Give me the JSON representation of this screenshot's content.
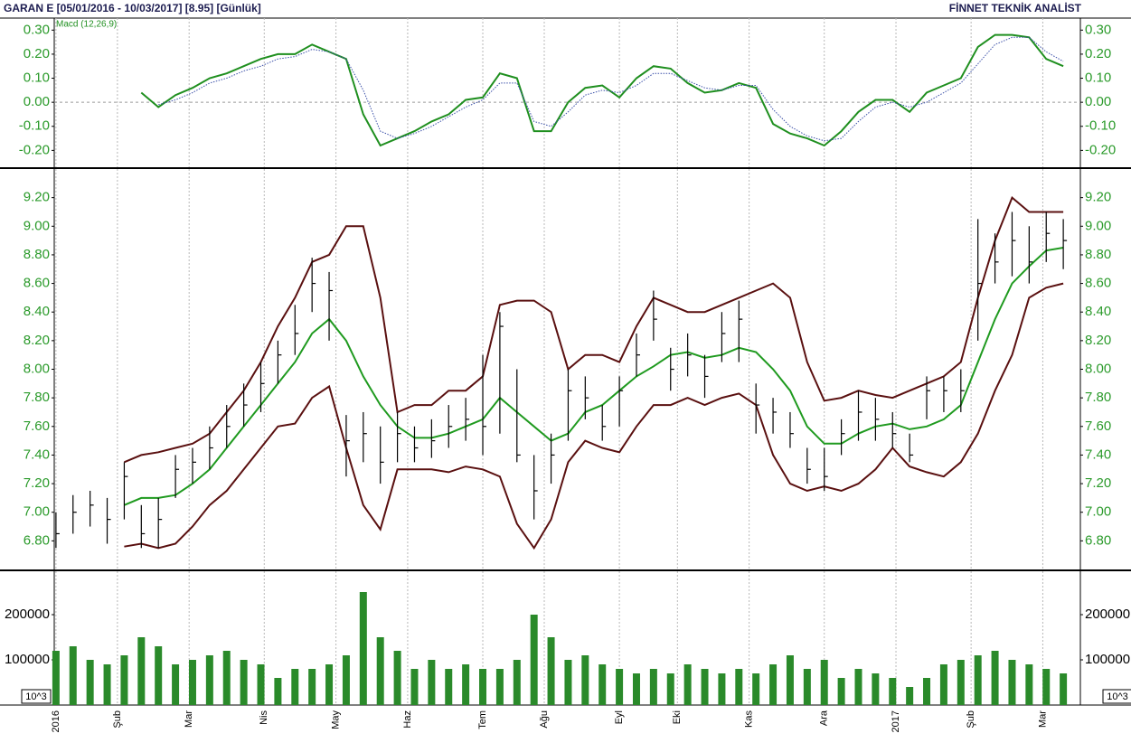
{
  "header": {
    "title": "GARAN E  [05/01/2016 - 10/03/2017]  [8.95]  [Günlük]",
    "brand": "FİNNET TEKNİK ANALİST"
  },
  "chart_data": [
    {
      "type": "line",
      "legend": "Macd (12,26,9)",
      "ref_line": 0,
      "xlim": [
        -0.5,
        300
      ],
      "ylim": [
        -0.27,
        0.35
      ],
      "yticks": [
        {
          "value": 0.3,
          "label": "0.30"
        },
        {
          "value": 0.2,
          "label": "0.20"
        },
        {
          "value": 0.1,
          "label": "0.10"
        },
        {
          "value": 0,
          "label": "0.00"
        },
        {
          "value": -0.1,
          "label": "-0.10"
        },
        {
          "value": -0.2,
          "label": "-0.20"
        }
      ],
      "x": [
        0,
        5,
        10,
        15,
        20,
        25,
        30,
        35,
        40,
        45,
        50,
        55,
        60,
        65,
        70,
        75,
        80,
        85,
        90,
        95,
        100,
        105,
        110,
        115,
        120,
        125,
        130,
        135,
        140,
        145,
        150,
        155,
        160,
        165,
        170,
        175,
        180,
        185,
        190,
        195,
        200,
        205,
        210,
        215,
        220,
        225,
        230,
        235,
        240,
        245,
        250,
        255,
        260,
        265,
        270,
        275,
        280,
        285,
        290,
        295
      ],
      "series": [
        {
          "color": "#1f8f1f",
          "style": "solid",
          "values": [
            null,
            null,
            null,
            null,
            null,
            0.04,
            -0.02,
            0.03,
            0.06,
            0.1,
            0.12,
            0.15,
            0.18,
            0.2,
            0.2,
            0.24,
            0.21,
            0.18,
            -0.05,
            -0.18,
            -0.15,
            -0.12,
            -0.08,
            -0.05,
            0.01,
            0.02,
            0.12,
            0.1,
            -0.12,
            -0.12,
            0.0,
            0.06,
            0.07,
            0.02,
            0.1,
            0.15,
            0.14,
            0.08,
            0.04,
            0.05,
            0.08,
            0.06,
            -0.09,
            -0.13,
            -0.15,
            -0.18,
            -0.12,
            -0.04,
            0.01,
            0.01,
            -0.04,
            0.04,
            0.07,
            0.1,
            0.23,
            0.28,
            0.28,
            0.27,
            0.18,
            0.15
          ]
        },
        {
          "color": "#3a4fa8",
          "style": "dotted",
          "values": [
            null,
            null,
            null,
            null,
            null,
            null,
            -0.01,
            0.01,
            0.04,
            0.08,
            0.1,
            0.13,
            0.15,
            0.18,
            0.19,
            0.22,
            0.21,
            0.18,
            0.05,
            -0.12,
            -0.15,
            -0.13,
            -0.1,
            -0.06,
            -0.02,
            0.01,
            0.08,
            0.08,
            -0.08,
            -0.1,
            -0.04,
            0.03,
            0.05,
            0.04,
            0.07,
            0.12,
            0.12,
            0.09,
            0.06,
            0.05,
            0.07,
            0.07,
            -0.03,
            -0.1,
            -0.14,
            -0.16,
            -0.15,
            -0.08,
            -0.02,
            0.0,
            -0.02,
            0.0,
            0.04,
            0.08,
            0.16,
            0.24,
            0.27,
            0.27,
            0.21,
            0.17
          ]
        }
      ]
    },
    {
      "type": "ohlc",
      "color": "#000000",
      "xlim": [
        -0.5,
        300
      ],
      "ylim": [
        6.6,
        9.4
      ],
      "yticks": [
        {
          "value": 9.2,
          "label": "9.20"
        },
        {
          "value": 9.0,
          "label": "9.00"
        },
        {
          "value": 8.8,
          "label": "8.80"
        },
        {
          "value": 8.6,
          "label": "8.60"
        },
        {
          "value": 8.4,
          "label": "8.40"
        },
        {
          "value": 8.2,
          "label": "8.20"
        },
        {
          "value": 8.0,
          "label": "8.00"
        },
        {
          "value": 7.8,
          "label": "7.80"
        },
        {
          "value": 7.6,
          "label": "7.60"
        },
        {
          "value": 7.4,
          "label": "7.40"
        },
        {
          "value": 7.2,
          "label": "7.20"
        },
        {
          "value": 7.0,
          "label": "7.00"
        },
        {
          "value": 6.8,
          "label": "6.80"
        }
      ],
      "x": [
        0,
        5,
        10,
        15,
        20,
        25,
        30,
        35,
        40,
        45,
        50,
        55,
        60,
        65,
        70,
        75,
        80,
        85,
        90,
        95,
        100,
        105,
        110,
        115,
        120,
        125,
        130,
        135,
        140,
        145,
        150,
        155,
        160,
        165,
        170,
        175,
        180,
        185,
        190,
        195,
        200,
        205,
        210,
        215,
        220,
        225,
        230,
        235,
        240,
        245,
        250,
        255,
        260,
        265,
        270,
        275,
        280,
        285,
        290,
        295
      ],
      "high": [
        7.0,
        7.12,
        7.15,
        7.1,
        7.35,
        7.05,
        7.1,
        7.4,
        7.45,
        7.6,
        7.75,
        7.9,
        8.05,
        8.2,
        8.45,
        8.78,
        8.68,
        7.68,
        7.7,
        7.6,
        7.7,
        7.6,
        7.65,
        7.75,
        7.8,
        8.1,
        8.4,
        8.0,
        7.4,
        7.55,
        8.0,
        7.95,
        7.75,
        7.95,
        8.25,
        8.55,
        8.15,
        8.25,
        8.1,
        8.4,
        8.48,
        7.9,
        7.8,
        7.7,
        7.45,
        7.45,
        7.65,
        7.85,
        7.8,
        7.7,
        7.55,
        7.95,
        7.95,
        8.0,
        9.05,
        8.95,
        9.1,
        9.0,
        9.1,
        9.05
      ],
      "low": [
        6.75,
        6.85,
        6.9,
        6.78,
        6.95,
        6.75,
        6.75,
        7.1,
        7.2,
        7.3,
        7.45,
        7.6,
        7.7,
        7.9,
        8.1,
        8.4,
        8.2,
        7.25,
        7.35,
        7.2,
        7.35,
        7.35,
        7.38,
        7.45,
        7.5,
        7.4,
        7.55,
        7.35,
        6.95,
        7.2,
        7.5,
        7.65,
        7.5,
        7.6,
        7.95,
        8.2,
        7.85,
        7.95,
        7.8,
        8.05,
        8.05,
        7.55,
        7.55,
        7.45,
        7.2,
        7.15,
        7.4,
        7.5,
        7.5,
        7.45,
        7.35,
        7.65,
        7.7,
        7.7,
        8.2,
        8.6,
        8.65,
        8.6,
        8.75,
        8.7
      ],
      "close": [
        6.85,
        7.0,
        7.05,
        6.95,
        7.25,
        6.85,
        6.95,
        7.3,
        7.35,
        7.45,
        7.6,
        7.75,
        7.9,
        8.1,
        8.25,
        8.6,
        8.55,
        7.5,
        7.55,
        7.35,
        7.55,
        7.45,
        7.5,
        7.6,
        7.65,
        7.6,
        8.3,
        7.4,
        7.15,
        7.4,
        7.85,
        7.8,
        7.6,
        7.85,
        8.1,
        8.35,
        8.0,
        8.1,
        7.95,
        8.25,
        8.35,
        7.75,
        7.7,
        7.55,
        7.3,
        7.25,
        7.55,
        7.7,
        7.65,
        7.55,
        7.4,
        7.85,
        7.85,
        7.85,
        8.6,
        8.75,
        8.9,
        8.75,
        8.95,
        8.9
      ],
      "series": [
        {
          "color": "#5a1010",
          "style": "solid",
          "values": [
            null,
            null,
            null,
            null,
            7.35,
            7.4,
            7.42,
            7.45,
            7.48,
            7.55,
            7.7,
            7.85,
            8.05,
            8.3,
            8.5,
            8.75,
            8.8,
            9.0,
            9.0,
            8.5,
            7.7,
            7.75,
            7.75,
            7.85,
            7.85,
            7.95,
            8.45,
            8.48,
            8.48,
            8.4,
            8.0,
            8.1,
            8.1,
            8.05,
            8.3,
            8.5,
            8.45,
            8.4,
            8.4,
            8.45,
            8.5,
            8.55,
            8.6,
            8.5,
            8.05,
            7.78,
            7.8,
            7.85,
            7.82,
            7.8,
            7.85,
            7.9,
            7.95,
            8.05,
            8.5,
            8.9,
            9.2,
            9.1,
            9.1,
            9.1
          ]
        },
        {
          "color": "#1f9a1f",
          "style": "solid",
          "values": [
            null,
            null,
            null,
            null,
            7.05,
            7.1,
            7.1,
            7.12,
            7.2,
            7.3,
            7.45,
            7.6,
            7.75,
            7.9,
            8.05,
            8.25,
            8.35,
            8.2,
            7.95,
            7.75,
            7.6,
            7.52,
            7.52,
            7.55,
            7.6,
            7.65,
            7.8,
            7.7,
            7.6,
            7.5,
            7.55,
            7.7,
            7.75,
            7.85,
            7.95,
            8.02,
            8.1,
            8.12,
            8.08,
            8.1,
            8.15,
            8.12,
            8.0,
            7.85,
            7.6,
            7.48,
            7.48,
            7.55,
            7.6,
            7.62,
            7.58,
            7.6,
            7.65,
            7.75,
            8.05,
            8.35,
            8.6,
            8.72,
            8.83,
            8.85
          ]
        },
        {
          "color": "#5a1010",
          "style": "solid",
          "values": [
            null,
            null,
            null,
            null,
            6.76,
            6.78,
            6.75,
            6.78,
            6.9,
            7.05,
            7.15,
            7.3,
            7.45,
            7.6,
            7.62,
            7.8,
            7.88,
            7.45,
            7.05,
            6.88,
            7.3,
            7.3,
            7.3,
            7.28,
            7.32,
            7.3,
            7.25,
            6.92,
            6.75,
            6.95,
            7.35,
            7.5,
            7.45,
            7.42,
            7.6,
            7.75,
            7.75,
            7.8,
            7.75,
            7.8,
            7.83,
            7.75,
            7.4,
            7.2,
            7.15,
            7.18,
            7.15,
            7.2,
            7.3,
            7.45,
            7.32,
            7.28,
            7.25,
            7.35,
            7.55,
            7.85,
            8.1,
            8.5,
            8.57,
            8.6
          ]
        }
      ]
    },
    {
      "type": "bar",
      "color": "#2a8a2a",
      "unit_label": "10^3",
      "xlim": [
        -0.5,
        300
      ],
      "ylim": [
        0,
        296000
      ],
      "yticks": [
        200000,
        100000
      ],
      "xticks": [
        {
          "value": 0,
          "label": "2016"
        },
        {
          "value": 18,
          "label": "Şub"
        },
        {
          "value": 39,
          "label": "Mar"
        },
        {
          "value": 61,
          "label": "Nis"
        },
        {
          "value": 82,
          "label": "May"
        },
        {
          "value": 103,
          "label": "Haz"
        },
        {
          "value": 125,
          "label": "Tem"
        },
        {
          "value": 143,
          "label": "Ağu"
        },
        {
          "value": 165,
          "label": "Eyl"
        },
        {
          "value": 182,
          "label": "Eki"
        },
        {
          "value": 203,
          "label": "Kas"
        },
        {
          "value": 225,
          "label": "Ara"
        },
        {
          "value": 246,
          "label": "2017"
        },
        {
          "value": 268,
          "label": "Şub"
        },
        {
          "value": 289,
          "label": "Mar"
        }
      ],
      "x": [
        0,
        5,
        10,
        15,
        20,
        25,
        30,
        35,
        40,
        45,
        50,
        55,
        60,
        65,
        70,
        75,
        80,
        85,
        90,
        95,
        100,
        105,
        110,
        115,
        120,
        125,
        130,
        135,
        140,
        145,
        150,
        155,
        160,
        165,
        170,
        175,
        180,
        185,
        190,
        195,
        200,
        205,
        210,
        215,
        220,
        225,
        230,
        235,
        240,
        245,
        250,
        255,
        260,
        265,
        270,
        275,
        280,
        285,
        290,
        295
      ],
      "values": [
        120000,
        130000,
        100000,
        90000,
        110000,
        150000,
        130000,
        90000,
        100000,
        110000,
        120000,
        100000,
        90000,
        60000,
        80000,
        80000,
        90000,
        110000,
        250000,
        150000,
        120000,
        80000,
        100000,
        80000,
        90000,
        80000,
        80000,
        100000,
        200000,
        150000,
        100000,
        110000,
        90000,
        80000,
        70000,
        80000,
        70000,
        90000,
        80000,
        70000,
        80000,
        70000,
        90000,
        110000,
        80000,
        100000,
        60000,
        80000,
        70000,
        60000,
        40000,
        60000,
        90000,
        100000,
        110000,
        120000,
        100000,
        90000,
        80000,
        70000
      ]
    }
  ]
}
